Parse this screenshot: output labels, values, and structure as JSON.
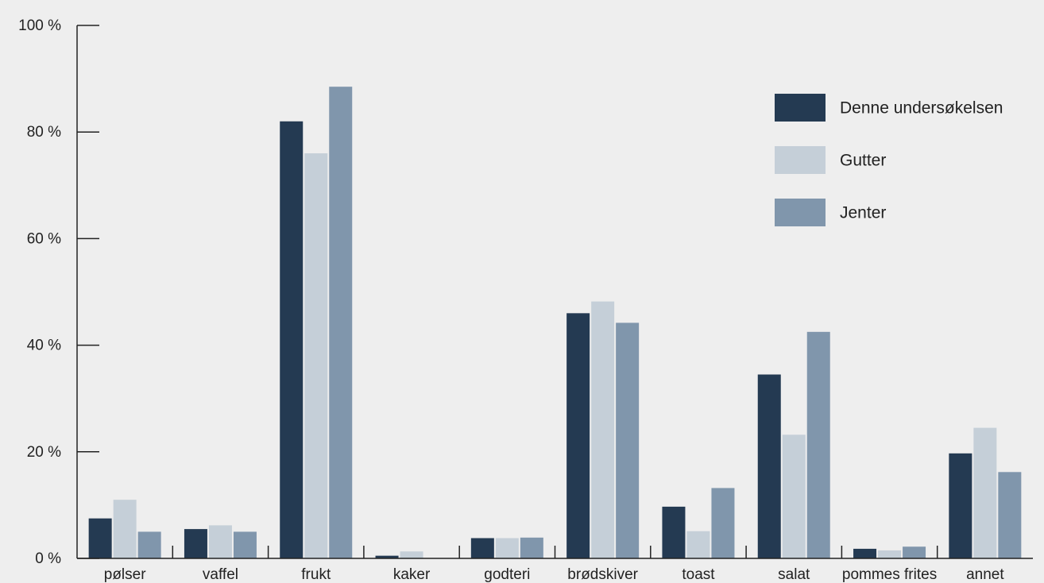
{
  "chart_data": {
    "type": "bar",
    "title": "",
    "xlabel": "",
    "ylabel": "",
    "ylim": [
      0,
      100
    ],
    "yticks": [
      0,
      20,
      40,
      60,
      80,
      100
    ],
    "ytick_labels": [
      "0 %",
      "20 %",
      "40 %",
      "60 %",
      "80 %",
      "100 %"
    ],
    "categories": [
      "pølser",
      "vaffel",
      "frukt",
      "kaker",
      "godteri",
      "brødskiver",
      "toast",
      "salat",
      "pommes frites",
      "annet"
    ],
    "series": [
      {
        "name": "Denne undersøkelsen",
        "color": "#243a52",
        "values": [
          7.5,
          5.5,
          82,
          0.5,
          3.8,
          46,
          9.7,
          34.5,
          1.8,
          19.7
        ]
      },
      {
        "name": "Gutter",
        "color": "#c5cfd8",
        "values": [
          11,
          6.2,
          76,
          1.3,
          3.8,
          48.2,
          5.1,
          23.2,
          1.5,
          24.5
        ]
      },
      {
        "name": "Jenter",
        "color": "#8096ac",
        "values": [
          5,
          5,
          88.5,
          0,
          3.9,
          44.2,
          13.2,
          42.5,
          2.2,
          16.2
        ]
      }
    ],
    "legend_position": "top-right",
    "grid": false
  }
}
